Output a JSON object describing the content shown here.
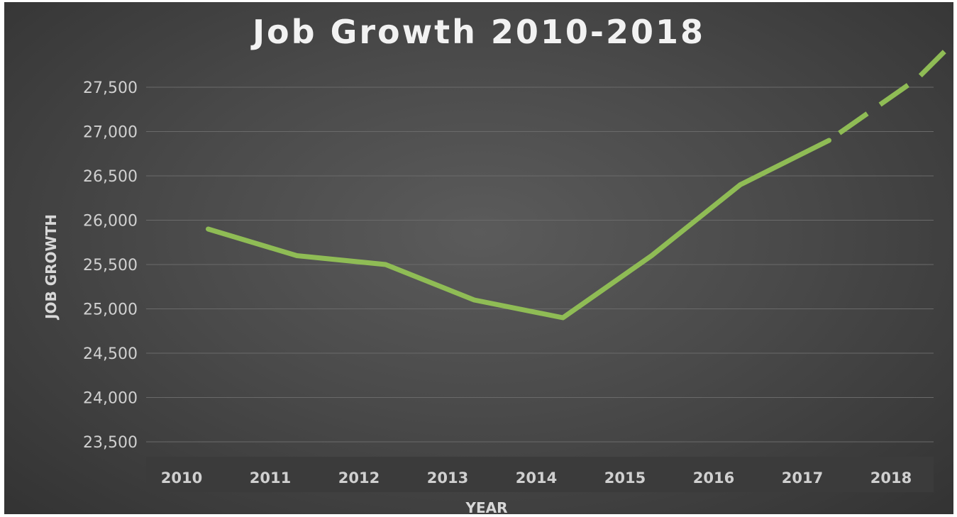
{
  "chart_data": {
    "type": "line",
    "title": "Job Growth 2010-2018",
    "xlabel": "YEAR",
    "ylabel": "JOB GROWTH",
    "categories": [
      "2010",
      "2011",
      "2012",
      "2013",
      "2014",
      "2015",
      "2016",
      "2017",
      "2018"
    ],
    "y_ticks": [
      "23,500",
      "24,000",
      "24,500",
      "25,000",
      "25,500",
      "26,000",
      "26,500",
      "27,000",
      "27,500"
    ],
    "ylim": [
      23500,
      27500
    ],
    "grid": true,
    "legend": "none",
    "series": [
      {
        "values": [
          25900,
          25600,
          25500,
          25100,
          24900,
          25600,
          26400,
          26900,
          27600,
          28000
        ],
        "x": [
          2010.3,
          2011.3,
          2012.3,
          2013.3,
          2014.3,
          2015.3,
          2016.3,
          2017.3,
          2018.3,
          2018.7
        ],
        "solid_until_index": 7,
        "line_style_after": "dashed",
        "color": "#8fbc55"
      }
    ],
    "background_color": "#4a4a4a",
    "axis_band_color": "#3b3b3b"
  }
}
